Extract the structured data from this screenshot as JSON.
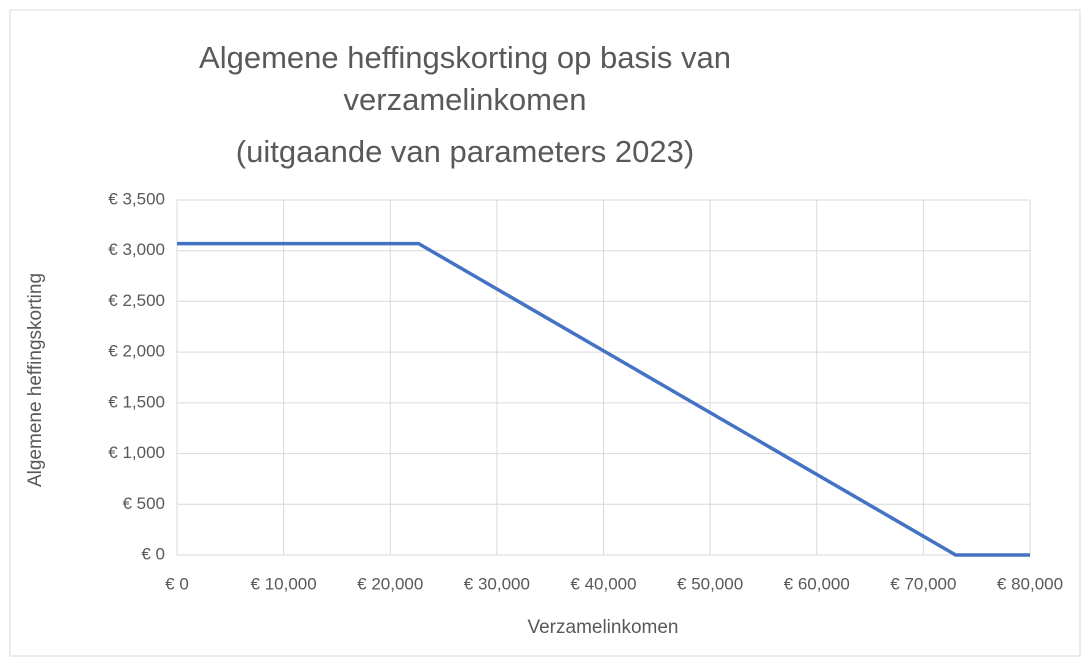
{
  "chart_data": {
    "type": "line",
    "title": [
      "Algemene heffingskorting op basis van",
      "verzamelinkomen",
      "(uitgaande van parameters 2023)"
    ],
    "x_label": "Verzamelinkomen",
    "y_label": "Algemene heffingskorting",
    "series": [
      {
        "name": "Algemene heffingskorting",
        "color": "#4472c4",
        "x": [
          0,
          22660,
          73031,
          80000
        ],
        "values": [
          3070,
          3070,
          0,
          0
        ]
      }
    ],
    "xlim": [
      0,
      80000
    ],
    "xticks": [
      {
        "value": 0,
        "label": "€ 0"
      },
      {
        "value": 10000,
        "label": "€ 10,000"
      },
      {
        "value": 20000,
        "label": "€ 20,000"
      },
      {
        "value": 30000,
        "label": "€ 30,000"
      },
      {
        "value": 40000,
        "label": "€ 40,000"
      },
      {
        "value": 50000,
        "label": "€ 50,000"
      },
      {
        "value": 60000,
        "label": "€ 60,000"
      },
      {
        "value": 70000,
        "label": "€ 70,000"
      },
      {
        "value": 80000,
        "label": "€ 80,000"
      }
    ],
    "ylim": [
      0,
      3500
    ],
    "yticks": [
      {
        "value": 0,
        "label": "€ 0"
      },
      {
        "value": 500,
        "label": "€ 500"
      },
      {
        "value": 1000,
        "label": "€ 1,000"
      },
      {
        "value": 1500,
        "label": "€ 1,500"
      },
      {
        "value": 2000,
        "label": "€ 2,000"
      },
      {
        "value": 2500,
        "label": "€ 2,500"
      },
      {
        "value": 3000,
        "label": "€ 3,000"
      },
      {
        "value": 3500,
        "label": "€ 3,500"
      }
    ],
    "grid": true
  }
}
